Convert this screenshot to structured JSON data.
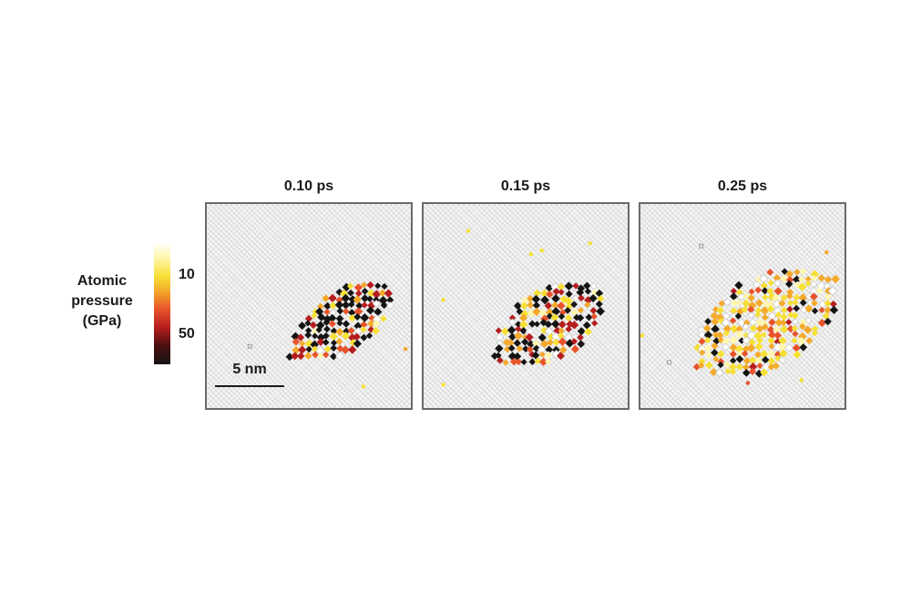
{
  "legend": {
    "title_lines": [
      "Atomic",
      "pressure",
      "(GPa)"
    ],
    "ticks": [
      {
        "label": "10",
        "value": 10
      },
      {
        "label": "50",
        "value": 50
      }
    ]
  },
  "scale_bar": {
    "label": "5 nm"
  },
  "panels": [
    {
      "title": "0.10 ps"
    },
    {
      "title": "0.15 ps"
    },
    {
      "title": "0.25 ps"
    }
  ],
  "colors": {
    "low_pressure": "#ffffff",
    "mid_low": "#f7e035",
    "mid": "#f4a92a",
    "mid_high": "#e8532b",
    "high": "#b51d1f",
    "highest": "#141414",
    "frame": "#6a6a6a"
  }
}
